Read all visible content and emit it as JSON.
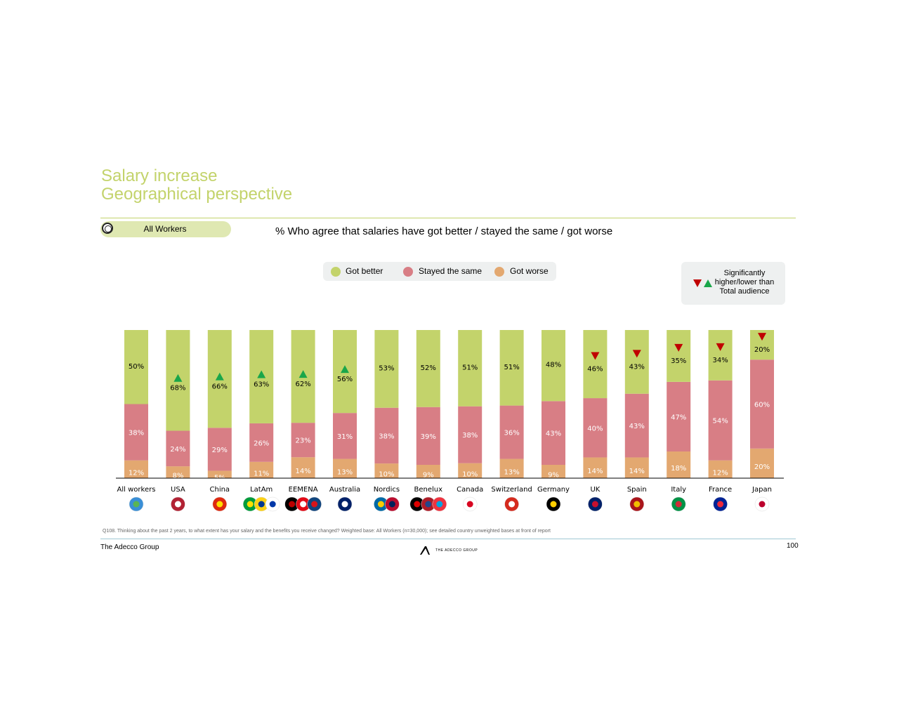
{
  "title": {
    "line1": "Salary increase",
    "line2": "Geographical perspective"
  },
  "filter": {
    "label": "All Workers"
  },
  "subtitle": "% Who agree that salaries have got better / stayed the same / got worse",
  "legend": [
    {
      "label": "Got better",
      "color": "#c3d36b"
    },
    {
      "label": "Stayed the same",
      "color": "#d87e85"
    },
    {
      "label": "Got worse",
      "color": "#e3a870"
    }
  ],
  "significance": {
    "line1": "Significantly",
    "line2": "higher/lower than",
    "line3": "Total audience",
    "up_color": "#1aa64a",
    "down_color": "#c00000"
  },
  "chart_data": {
    "type": "bar",
    "stacked": true,
    "normalized": true,
    "categories": [
      "All workers",
      "USA",
      "China",
      "LatAm",
      "EEMENA",
      "Australia",
      "Nordics",
      "Benelux",
      "Canada",
      "Switzerland",
      "Germany",
      "UK",
      "Spain",
      "Italy",
      "France",
      "Japan"
    ],
    "series": [
      {
        "name": "Got worse",
        "values": [
          12,
          8,
          5,
          11,
          14,
          13,
          10,
          9,
          10,
          13,
          9,
          14,
          14,
          18,
          12,
          20
        ]
      },
      {
        "name": "Stayed the same",
        "values": [
          38,
          24,
          29,
          26,
          23,
          31,
          38,
          39,
          38,
          36,
          43,
          40,
          43,
          47,
          54,
          60
        ]
      },
      {
        "name": "Got better",
        "values": [
          50,
          68,
          66,
          63,
          62,
          56,
          53,
          52,
          51,
          51,
          48,
          46,
          43,
          35,
          34,
          20
        ]
      }
    ],
    "labels": [
      [
        "12%",
        "8%",
        "5%",
        "11%",
        "14%",
        "13%",
        "10%",
        "9%",
        "10%",
        "13%",
        "9%",
        "14%",
        "14%",
        "18%",
        "12%",
        "20%"
      ],
      [
        "38%",
        "24%",
        "29%",
        "26%",
        "23%",
        "31%",
        "38%",
        "39%",
        "38%",
        "36%",
        "43%",
        "40%",
        "43%",
        "47%",
        "54%",
        "60%"
      ],
      [
        "50%",
        "68%",
        "66%",
        "63%",
        "62%",
        "56%",
        "53%",
        "52%",
        "51%",
        "51%",
        "48%",
        "46%",
        "43%",
        "35%",
        "34%",
        "20%"
      ]
    ],
    "significance": [
      "none",
      "up",
      "up",
      "up",
      "up",
      "up",
      "none",
      "none",
      "none",
      "none",
      "none",
      "down",
      "down",
      "down",
      "down",
      "down"
    ],
    "flags": [
      "globe",
      "usa",
      "china",
      "brazil+colombia+uruguay",
      "kenya+turkey+czech",
      "australia",
      "sweden+norway",
      "germany?+netherlands+luxembourg",
      "canada",
      "switzerland",
      "germany",
      "uk",
      "spain",
      "italy",
      "france",
      "japan"
    ],
    "ylim": [
      0,
      100
    ],
    "xlabel": "",
    "ylabel": "",
    "title": ""
  },
  "footnote": "Q108. Thinking about the past 2 years, to what extent has your salary and the benefits you receive changed? Weighted base: All Workers (n=30,000); see detailed country unweighted bases at front of report",
  "footer": {
    "company": "The Adecco Group",
    "page": "100",
    "logo_text": "THE ADECCO GROUP"
  }
}
